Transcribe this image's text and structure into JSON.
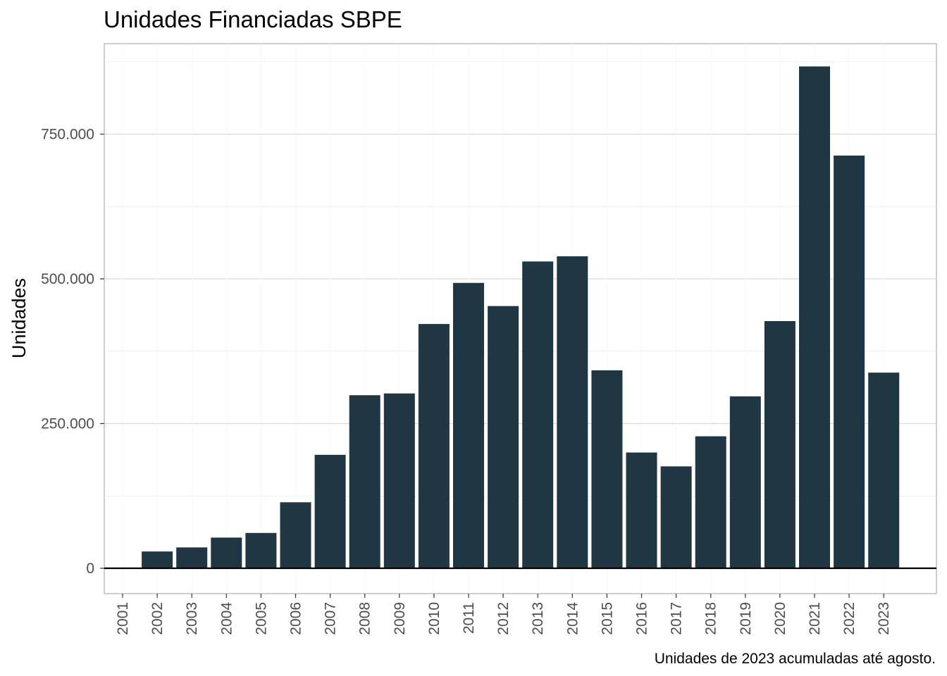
{
  "chart_data": {
    "type": "bar",
    "title": "Unidades Financiadas SBPE",
    "xlabel": "",
    "ylabel": "Unidades",
    "caption": "Unidades de 2023 acumuladas até agosto.",
    "categories": [
      "2001",
      "2002",
      "2003",
      "2004",
      "2005",
      "2006",
      "2007",
      "2008",
      "2009",
      "2010",
      "2011",
      "2012",
      "2013",
      "2014",
      "2015",
      "2016",
      "2017",
      "2018",
      "2019",
      "2020",
      "2021",
      "2022",
      "2023"
    ],
    "values": [
      0,
      29000,
      36000,
      53000,
      61000,
      114000,
      196000,
      299000,
      302000,
      422000,
      493000,
      453000,
      530000,
      539000,
      342000,
      200000,
      176000,
      228000,
      297000,
      427000,
      867000,
      713000,
      338000
    ],
    "yticks": [
      0,
      250000,
      500000,
      750000
    ],
    "ytick_labels": [
      "0",
      "250.000",
      "500.000",
      "750.000"
    ],
    "ylim": [
      -42000,
      910000
    ],
    "grid": true,
    "bar_color": "#203743"
  }
}
